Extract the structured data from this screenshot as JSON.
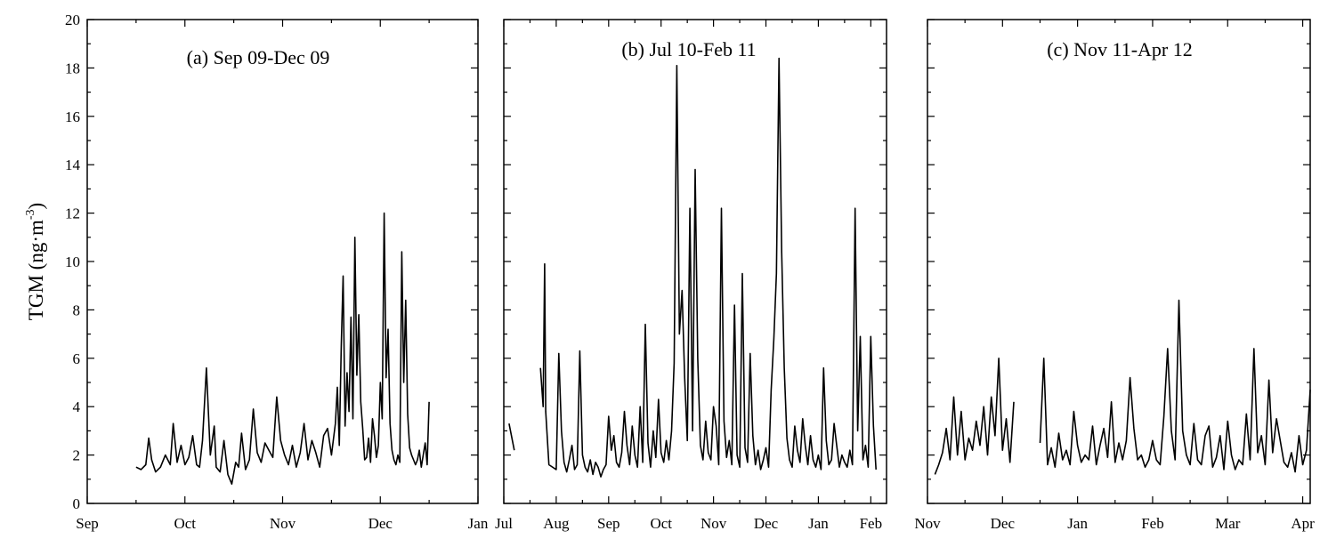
{
  "chart_data": [
    {
      "type": "line",
      "title": "(a) Sep 09-Dec 09",
      "ylabel": "TGM (ng·m-3)",
      "ylim": [
        0,
        20
      ],
      "yticks": [
        0,
        2,
        4,
        6,
        8,
        10,
        12,
        14,
        16,
        18,
        20
      ],
      "xlim": [
        0,
        4
      ],
      "xticks": [
        {
          "pos": 0,
          "label": "Sep"
        },
        {
          "pos": 1,
          "label": "Oct"
        },
        {
          "pos": 2,
          "label": "Nov"
        },
        {
          "pos": 3,
          "label": "Dec"
        },
        {
          "pos": 4,
          "label": "Jan"
        }
      ],
      "series": [
        {
          "x": [
            0.5,
            0.55,
            0.6,
            0.63,
            0.66,
            0.7,
            0.75,
            0.8,
            0.85,
            0.88,
            0.92,
            0.96,
            1.0,
            1.04,
            1.08,
            1.12,
            1.15,
            1.18,
            1.22,
            1.26,
            1.3,
            1.32,
            1.36,
            1.4,
            1.44,
            1.48,
            1.52,
            1.55,
            1.58,
            1.62,
            1.66,
            1.7,
            1.74,
            1.78,
            1.82,
            1.86,
            1.9,
            1.94,
            1.98,
            2.02,
            2.06,
            2.1,
            2.14,
            2.18,
            2.22,
            2.26,
            2.3,
            2.34,
            2.38,
            2.42,
            2.46,
            2.5,
            2.54,
            2.56,
            2.58,
            2.6,
            2.62,
            2.64,
            2.66,
            2.68,
            2.7,
            2.72,
            2.74,
            2.76,
            2.78,
            2.8,
            2.82,
            2.84,
            2.86,
            2.88,
            2.9,
            2.92,
            2.94,
            2.96,
            2.98,
            3.0,
            3.02,
            3.04,
            3.06,
            3.08,
            3.1,
            3.12,
            3.14,
            3.16,
            3.18,
            3.2,
            3.22,
            3.24,
            3.26,
            3.28,
            3.3,
            3.32,
            3.34,
            3.36,
            3.38,
            3.4,
            3.42,
            3.44,
            3.46,
            3.48,
            3.5
          ],
          "y": [
            1.5,
            1.4,
            1.6,
            2.7,
            1.8,
            1.3,
            1.5,
            2.0,
            1.6,
            3.3,
            1.7,
            2.4,
            1.6,
            1.9,
            2.8,
            1.6,
            1.5,
            2.6,
            5.6,
            2.0,
            3.2,
            1.5,
            1.3,
            2.6,
            1.2,
            0.8,
            1.7,
            1.5,
            2.9,
            1.4,
            1.8,
            3.9,
            2.1,
            1.7,
            2.5,
            2.2,
            1.9,
            4.4,
            2.6,
            2.0,
            1.6,
            2.4,
            1.5,
            2.1,
            3.3,
            1.8,
            2.6,
            2.1,
            1.5,
            2.8,
            3.1,
            2.0,
            3.3,
            4.8,
            2.4,
            6.5,
            9.4,
            3.2,
            5.4,
            3.8,
            7.7,
            3.5,
            11.0,
            5.3,
            7.8,
            4.2,
            3.1,
            1.8,
            1.9,
            2.7,
            1.7,
            3.5,
            2.8,
            1.9,
            2.4,
            5.0,
            3.5,
            12.0,
            5.2,
            7.2,
            3.3,
            2.2,
            1.8,
            1.6,
            2.0,
            1.7,
            10.4,
            5.0,
            8.4,
            3.7,
            2.3,
            2.0,
            1.8,
            1.6,
            1.8,
            2.2,
            1.5,
            2.0,
            2.5,
            1.6,
            4.2
          ]
        }
      ]
    },
    {
      "type": "line",
      "title": "(b) Jul 10-Feb 11",
      "ylim": [
        0,
        20
      ],
      "xlim": [
        0,
        7.3
      ],
      "xticks": [
        {
          "pos": 0,
          "label": "Jul"
        },
        {
          "pos": 1,
          "label": "Aug"
        },
        {
          "pos": 2,
          "label": "Sep"
        },
        {
          "pos": 3,
          "label": "Oct"
        },
        {
          "pos": 4,
          "label": "Nov"
        },
        {
          "pos": 5,
          "label": "Dec"
        },
        {
          "pos": 6,
          "label": "Jan"
        },
        {
          "pos": 7,
          "label": "Feb"
        }
      ],
      "series": [
        {
          "x": [
            0.1,
            0.2,
            0.7,
            0.75,
            0.78,
            0.8,
            0.83,
            0.86,
            1.0,
            1.05,
            1.1,
            1.15,
            1.2,
            1.25,
            1.3,
            1.35,
            1.4,
            1.45,
            1.5,
            1.55,
            1.6,
            1.65,
            1.7,
            1.75,
            1.8,
            1.85,
            1.9,
            1.95,
            2.0,
            2.05,
            2.1,
            2.15,
            2.2,
            2.25,
            2.3,
            2.35,
            2.4,
            2.45,
            2.5,
            2.55,
            2.6,
            2.65,
            2.7,
            2.75,
            2.8,
            2.85,
            2.9,
            2.95,
            3.0,
            3.05,
            3.1,
            3.15,
            3.2,
            3.25,
            3.3,
            3.35,
            3.4,
            3.45,
            3.5,
            3.55,
            3.6,
            3.65,
            3.7,
            3.75,
            3.8,
            3.85,
            3.9,
            3.95,
            4.0,
            4.05,
            4.1,
            4.15,
            4.2,
            4.25,
            4.3,
            4.35,
            4.4,
            4.45,
            4.5,
            4.55,
            4.6,
            4.65,
            4.7,
            4.75,
            4.8,
            4.85,
            4.9,
            4.95,
            5.0,
            5.05,
            5.1,
            5.15,
            5.2,
            5.25,
            5.3,
            5.35,
            5.4,
            5.45,
            5.5,
            5.55,
            5.6,
            5.65,
            5.7,
            5.75,
            5.8,
            5.85,
            5.9,
            5.95,
            6.0,
            6.05,
            6.1,
            6.15,
            6.2,
            6.25,
            6.3,
            6.35,
            6.4,
            6.45,
            6.5,
            6.55,
            6.6,
            6.65,
            6.7,
            6.75,
            6.8,
            6.85,
            6.9,
            6.95,
            7.0,
            7.05,
            7.1
          ],
          "y": [
            3.3,
            2.2,
            5.6,
            4.0,
            9.9,
            3.8,
            2.7,
            1.6,
            1.4,
            6.2,
            3.0,
            1.7,
            1.3,
            1.8,
            2.4,
            1.4,
            1.6,
            6.3,
            2.0,
            1.5,
            1.3,
            1.8,
            1.2,
            1.7,
            1.5,
            1.1,
            1.4,
            1.6,
            3.6,
            2.2,
            2.8,
            1.7,
            1.5,
            2.1,
            3.8,
            2.4,
            1.6,
            3.2,
            2.0,
            1.5,
            4.0,
            1.7,
            7.4,
            2.5,
            1.5,
            3.0,
            1.9,
            4.3,
            2.1,
            1.7,
            2.6,
            1.8,
            3.0,
            5.8,
            18.1,
            7.0,
            8.8,
            5.2,
            2.6,
            12.2,
            3.0,
            13.8,
            6.0,
            2.4,
            1.8,
            3.4,
            2.1,
            1.8,
            4.0,
            3.2,
            1.6,
            12.2,
            3.4,
            1.9,
            2.6,
            1.6,
            8.2,
            2.0,
            1.5,
            9.5,
            2.3,
            1.7,
            6.2,
            2.8,
            1.6,
            2.2,
            1.4,
            1.8,
            2.3,
            1.5,
            4.7,
            6.8,
            9.5,
            18.4,
            10.4,
            5.6,
            2.7,
            1.8,
            1.5,
            3.2,
            2.2,
            1.7,
            3.5,
            2.4,
            1.6,
            2.8,
            1.8,
            1.5,
            2.0,
            1.4,
            5.6,
            2.6,
            1.6,
            1.8,
            3.3,
            2.4,
            1.5,
            2.0,
            1.7,
            1.5,
            2.2,
            1.6,
            12.2,
            3.0,
            6.9,
            1.8,
            2.4,
            1.5,
            6.9,
            3.2,
            1.4
          ]
        }
      ]
    },
    {
      "type": "line",
      "title": "(c) Nov 11-Apr 12",
      "ylim": [
        0,
        20
      ],
      "xlim": [
        0,
        5.1
      ],
      "xticks": [
        {
          "pos": 0,
          "label": "Nov"
        },
        {
          "pos": 1,
          "label": "Dec"
        },
        {
          "pos": 2,
          "label": "Jan"
        },
        {
          "pos": 3,
          "label": "Feb"
        },
        {
          "pos": 4,
          "label": "Mar"
        },
        {
          "pos": 5,
          "label": "Apr"
        }
      ],
      "series": [
        {
          "x": [
            0.1,
            0.15,
            0.2,
            0.25,
            0.3,
            0.35,
            0.4,
            0.45,
            0.5,
            0.55,
            0.6,
            0.65,
            0.7,
            0.75,
            0.8,
            0.85,
            0.9,
            0.95,
            1.0,
            1.05,
            1.1,
            1.15,
            1.5,
            1.55,
            1.6,
            1.65,
            1.7,
            1.75,
            1.8,
            1.85,
            1.9,
            1.95,
            2.0,
            2.05,
            2.1,
            2.15,
            2.2,
            2.25,
            2.3,
            2.35,
            2.4,
            2.45,
            2.5,
            2.55,
            2.6,
            2.65,
            2.7,
            2.75,
            2.8,
            2.85,
            2.9,
            2.95,
            3.0,
            3.05,
            3.1,
            3.15,
            3.2,
            3.25,
            3.3,
            3.35,
            3.4,
            3.45,
            3.5,
            3.55,
            3.6,
            3.65,
            3.7,
            3.75,
            3.8,
            3.85,
            3.9,
            3.95,
            4.0,
            4.05,
            4.1,
            4.15,
            4.2,
            4.25,
            4.3,
            4.35,
            4.4,
            4.45,
            4.5,
            4.55,
            4.6,
            4.65,
            4.7,
            4.75,
            4.8,
            4.85,
            4.9,
            4.95,
            5.0,
            5.05,
            5.1
          ],
          "y": [
            1.2,
            1.6,
            2.1,
            3.1,
            1.8,
            4.4,
            2.0,
            3.8,
            1.8,
            2.7,
            2.2,
            3.4,
            2.4,
            4.0,
            2.0,
            4.4,
            2.8,
            6.0,
            2.2,
            3.5,
            1.7,
            4.2,
            2.5,
            6.0,
            1.6,
            2.3,
            1.5,
            2.9,
            1.8,
            2.2,
            1.6,
            3.8,
            2.4,
            1.7,
            2.0,
            1.8,
            3.2,
            1.6,
            2.4,
            3.1,
            1.9,
            4.2,
            1.7,
            2.5,
            1.8,
            2.6,
            5.2,
            3.1,
            1.8,
            2.0,
            1.5,
            1.8,
            2.6,
            1.8,
            1.6,
            3.6,
            6.4,
            3.0,
            1.8,
            8.4,
            3.0,
            2.0,
            1.6,
            3.3,
            1.8,
            1.6,
            2.8,
            3.2,
            1.5,
            1.9,
            2.8,
            1.4,
            3.4,
            2.0,
            1.4,
            1.8,
            1.6,
            3.7,
            1.8,
            6.4,
            2.1,
            2.8,
            1.6,
            5.1,
            2.1,
            3.5,
            2.6,
            1.7,
            1.5,
            2.1,
            1.3,
            2.8,
            1.6,
            2.2,
            4.7
          ]
        }
      ]
    }
  ]
}
